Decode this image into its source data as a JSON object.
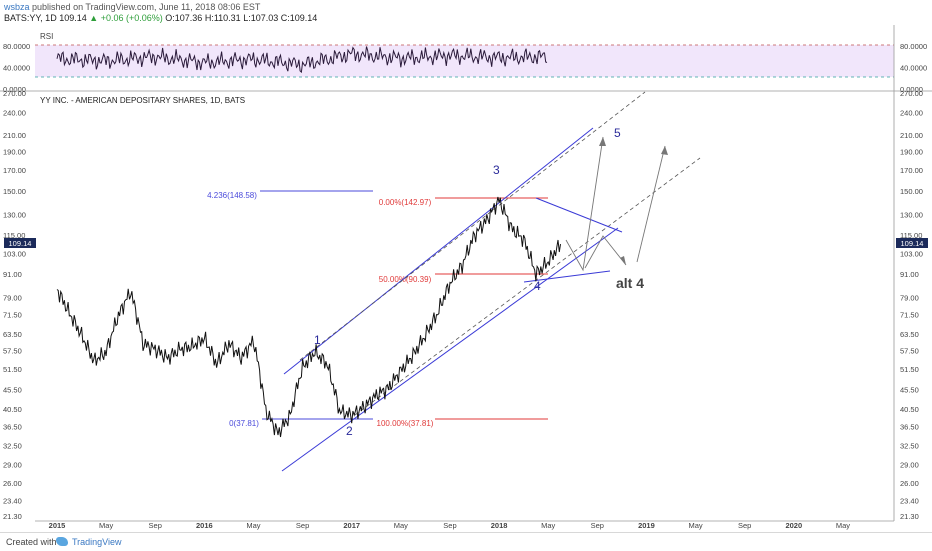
{
  "header": {
    "publisher_user": "wsbza",
    "publisher_rest": "published on TradingView.com, June 11, 2018 08:06 EST",
    "symbol": "BATS:YY, 1D",
    "last": "109.14",
    "change": "+0.06 (+0.06%)",
    "ohlc_o": "O:107.36",
    "ohlc_h": "H:110.31",
    "ohlc_l": "L:107.03",
    "ohlc_c": "C:109.14"
  },
  "rsi_label": "RSI",
  "rsi_ticks": [
    "80.0000",
    "40.0000",
    "0.0000"
  ],
  "main_title": "YY INC. - AMERICAN DEPOSITARY SHARES, 1D, BATS",
  "footer": {
    "created_with": "Created with",
    "brand": "TradingView"
  },
  "chart_data": [
    {
      "type": "line",
      "title": "RSI",
      "ylim": [
        0,
        100
      ],
      "y_ticks": [
        80,
        40,
        0
      ],
      "band": [
        30,
        70
      ],
      "x": [
        "2015-01",
        "2015-05",
        "2015-09",
        "2016-01",
        "2016-05",
        "2016-09",
        "2017-01",
        "2017-05",
        "2017-09",
        "2018-01",
        "2018-05"
      ],
      "values": [
        56,
        52,
        60,
        49,
        55,
        45,
        65,
        57,
        62,
        58,
        60
      ]
    },
    {
      "type": "line",
      "title": "YY INC. - AMERICAN DEPOSITARY SHARES, 1D, BATS",
      "log_scale": true,
      "y_ticks": [
        "270.00",
        "240.00",
        "210.00",
        "190.00",
        "170.00",
        "150.00",
        "130.00",
        "115.00",
        "103.00",
        "91.00",
        "79.00",
        "71.50",
        "63.50",
        "57.50",
        "51.50",
        "45.50",
        "40.50",
        "36.50",
        "32.50",
        "29.00",
        "26.00",
        "23.40",
        "21.30"
      ],
      "x_ticks": [
        "2015",
        "May",
        "Sep",
        "2016",
        "May",
        "Sep",
        "2017",
        "May",
        "Sep",
        "2018",
        "May",
        "Sep",
        "2019",
        "May",
        "Sep",
        "2020",
        "May"
      ],
      "last_price": "109.14",
      "series": [
        {
          "x": [
            "2015-01",
            "2015-02",
            "2015-03",
            "2015-04",
            "2015-05",
            "2015-06",
            "2015-07",
            "2015-08",
            "2015-09",
            "2015-10",
            "2015-11",
            "2015-12",
            "2016-01",
            "2016-02",
            "2016-03",
            "2016-04",
            "2016-05",
            "2016-06",
            "2016-07",
            "2016-08",
            "2016-09",
            "2016-10",
            "2016-11",
            "2016-12",
            "2017-01",
            "2017-02",
            "2017-03",
            "2017-04",
            "2017-05",
            "2017-06",
            "2017-07",
            "2017-08",
            "2017-09",
            "2017-10",
            "2017-11",
            "2017-12",
            "2018-01",
            "2018-02",
            "2018-03",
            "2018-04",
            "2018-05",
            "2018-06"
          ],
          "values": [
            83,
            72,
            63,
            54,
            57,
            71,
            82,
            60,
            58,
            55,
            58,
            59,
            62,
            53,
            60,
            55,
            61,
            40,
            35,
            39,
            52,
            57,
            53,
            40,
            39,
            41,
            44,
            46,
            51,
            56,
            63,
            72,
            86,
            96,
            115,
            126,
            142,
            120,
            112,
            91,
            98,
            109
          ]
        }
      ],
      "annotations": {
        "wave_labels": [
          "1",
          "2",
          "3",
          "4",
          "5",
          "alt 4"
        ],
        "fib_ext": "4.236(148.58)",
        "fib_base": "0(37.81)",
        "retr_0": "0.00%(142.97)",
        "retr_50": "50.00%(90.39)",
        "retr_100": "100.00%(37.81)"
      }
    }
  ]
}
